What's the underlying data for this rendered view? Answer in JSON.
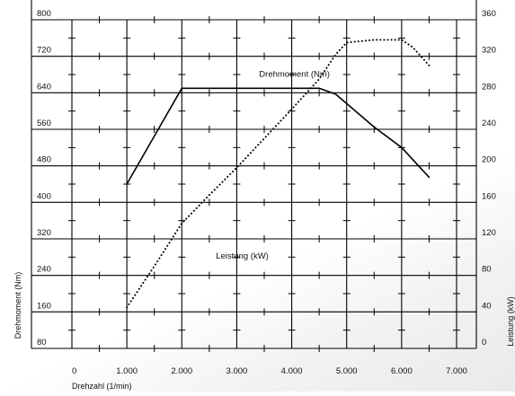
{
  "chart_data": {
    "type": "line",
    "title": "",
    "xlabel": "Drehzahl (1/min)",
    "ylabel_left": "Drehmoment (Nm)",
    "ylabel_right": "Leistung (kW)",
    "xlim": [
      0,
      7000
    ],
    "ylim_left": [
      80,
      800
    ],
    "ylim_right": [
      0,
      360
    ],
    "grid": true,
    "x_ticks": [
      "0",
      "1.000",
      "2.000",
      "3.000",
      "4.000",
      "5.000",
      "6.000",
      "7.000"
    ],
    "x_tick_values": [
      0,
      1000,
      2000,
      3000,
      4000,
      5000,
      6000,
      7000
    ],
    "y_left_ticks": [
      "80",
      "160",
      "240",
      "320",
      "400",
      "480",
      "560",
      "640",
      "720",
      "800"
    ],
    "y_left_tick_values": [
      80,
      160,
      240,
      320,
      400,
      480,
      560,
      640,
      720,
      800
    ],
    "y_right_ticks": [
      "0",
      "40",
      "80",
      "120",
      "160",
      "200",
      "240",
      "280",
      "320",
      "360"
    ],
    "y_right_tick_values": [
      0,
      40,
      80,
      120,
      160,
      200,
      240,
      280,
      320,
      360
    ],
    "series": [
      {
        "name": "Drehmoment (Nm)",
        "axis": "left",
        "style": "solid",
        "color": "#000000",
        "x": [
          1000,
          1500,
          2000,
          3000,
          4000,
          4500,
          4800,
          5500,
          6000,
          6500
        ],
        "y": [
          440,
          545,
          650,
          650,
          650,
          650,
          637,
          565,
          520,
          455
        ]
      },
      {
        "name": "Leistung (kW)",
        "axis": "right",
        "style": "dotted",
        "color": "#000000",
        "x": [
          1000,
          1500,
          2000,
          2500,
          3000,
          3500,
          4000,
          4500,
          4800,
          5000,
          5500,
          6000,
          6200,
          6500
        ],
        "y": [
          45,
          90,
          137,
          168,
          198,
          230,
          262,
          295,
          322,
          335,
          338,
          338,
          330,
          310
        ]
      }
    ],
    "annotations": [
      {
        "text": "Drehmoment (Nm)",
        "x": 4050,
        "y_left": 675
      },
      {
        "text": "Leistung (kW)",
        "x": 3100,
        "y_left": 277
      }
    ]
  }
}
